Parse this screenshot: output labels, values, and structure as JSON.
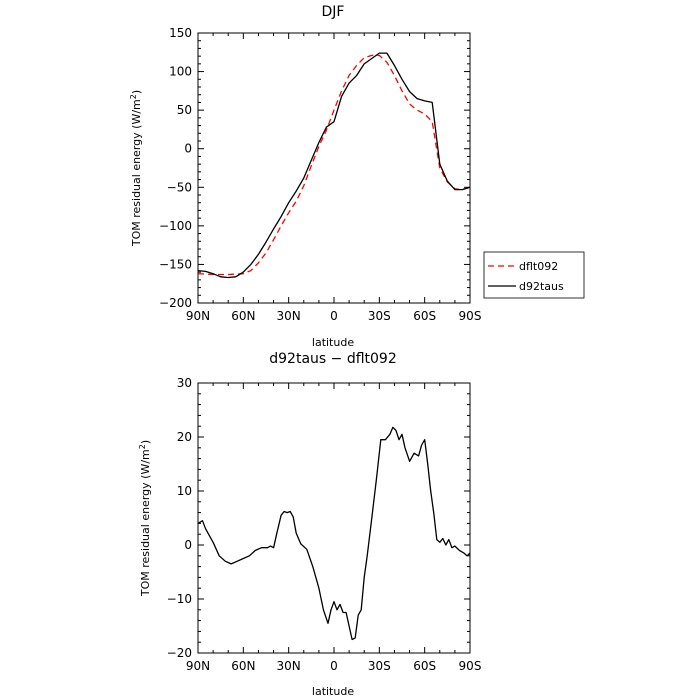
{
  "chart_data": [
    {
      "type": "line",
      "title": "DJF",
      "xlabel": "latitude",
      "ylabel_main": "TOM residual energy (W/m",
      "ylabel_sup": "2",
      "ylabel_close": ")",
      "x_reversed": true,
      "xlim": [
        -90,
        90
      ],
      "ylim": [
        -200,
        150
      ],
      "x_ticks": [
        90,
        60,
        30,
        0,
        -30,
        -60,
        -90
      ],
      "x_tick_labels": [
        "90N",
        "60N",
        "30N",
        "0",
        "30S",
        "60S",
        "90S"
      ],
      "y_ticks": [
        150,
        100,
        50,
        0,
        -50,
        -100,
        -150,
        -200
      ],
      "y_tick_labels": [
        "150",
        "100",
        "50",
        "0",
        "−50",
        "−100",
        "−150",
        "−200"
      ],
      "legend": {
        "placement": "right",
        "entries": [
          "dflt092",
          "d92taus"
        ]
      },
      "series": [
        {
          "name": "dflt092",
          "color": "#ff0000",
          "dash": "6,4",
          "x": [
            90,
            80,
            70,
            60,
            55,
            50,
            45,
            40,
            35,
            30,
            25,
            20,
            15,
            10,
            5,
            0,
            -5,
            -10,
            -15,
            -20,
            -25,
            -30,
            -35,
            -40,
            -45,
            -50,
            -55,
            -60,
            -65,
            -70,
            -75,
            -80,
            -85,
            -90
          ],
          "y": [
            -162,
            -163,
            -163,
            -162,
            -158,
            -148,
            -135,
            -118,
            -100,
            -83,
            -68,
            -48,
            -22,
            3,
            24,
            50,
            75,
            95,
            108,
            118,
            121,
            121,
            112,
            95,
            75,
            58,
            50,
            45,
            35,
            -25,
            -43,
            -52,
            -53,
            -50
          ]
        },
        {
          "name": "d92taus",
          "color": "#000000",
          "dash": "",
          "x": [
            90,
            85,
            80,
            75,
            70,
            65,
            60,
            55,
            50,
            45,
            40,
            35,
            30,
            25,
            20,
            15,
            10,
            5,
            0,
            -5,
            -10,
            -15,
            -20,
            -25,
            -30,
            -35,
            -40,
            -45,
            -50,
            -55,
            -60,
            -65,
            -70,
            -75,
            -80,
            -85,
            -90
          ],
          "y": [
            -158,
            -159,
            -162,
            -166,
            -167,
            -166,
            -160,
            -150,
            -137,
            -121,
            -104,
            -88,
            -70,
            -55,
            -38,
            -15,
            8,
            28,
            35,
            68,
            85,
            95,
            110,
            117,
            124,
            124,
            108,
            90,
            74,
            65,
            62,
            60,
            -20,
            -42,
            -53,
            -53,
            -50
          ]
        }
      ]
    },
    {
      "type": "line",
      "title": "d92taus − dflt092",
      "xlabel": "latitude",
      "ylabel_main": "TOM residual energy (W/m",
      "ylabel_sup": "2",
      "ylabel_close": ")",
      "x_reversed": true,
      "xlim": [
        -90,
        90
      ],
      "ylim": [
        -20,
        30
      ],
      "x_ticks": [
        90,
        60,
        30,
        0,
        -30,
        -60,
        -90
      ],
      "x_tick_labels": [
        "90N",
        "60N",
        "30N",
        "0",
        "30S",
        "60S",
        "90S"
      ],
      "y_ticks": [
        30,
        20,
        10,
        0,
        -10,
        -20
      ],
      "y_tick_labels": [
        "30",
        "20",
        "10",
        "0",
        "−10",
        "−20"
      ],
      "series": [
        {
          "color": "#000000",
          "dash": "",
          "x": [
            90,
            87,
            85,
            80,
            76,
            72,
            68,
            64,
            60,
            56,
            52,
            48,
            46,
            44,
            42,
            40,
            38,
            35,
            33,
            31,
            29,
            27,
            25,
            22,
            18,
            14,
            10,
            7,
            4,
            2,
            0,
            -2,
            -4,
            -6,
            -8,
            -10,
            -12,
            -14,
            -16,
            -18,
            -20,
            -22,
            -25,
            -28,
            -31,
            -34,
            -37,
            -39,
            -41,
            -43,
            -45,
            -47,
            -50,
            -53,
            -56,
            -58,
            -60,
            -62,
            -64,
            -66,
            -68,
            -70,
            -72,
            -74,
            -76,
            -78,
            -80,
            -83,
            -86,
            -88,
            -90
          ],
          "y": [
            4,
            4.5,
            3,
            0.5,
            -2,
            -3,
            -3.5,
            -3,
            -2.5,
            -2,
            -1,
            -0.5,
            -0.5,
            -0.5,
            -0.2,
            -0.5,
            2,
            5.5,
            6.2,
            6,
            6.2,
            5.2,
            2.2,
            0.2,
            -0.8,
            -4,
            -8,
            -12,
            -14.5,
            -12,
            -10.5,
            -12,
            -11,
            -12.5,
            -12.5,
            -15,
            -17.5,
            -17.2,
            -13,
            -12,
            -6,
            -2,
            5,
            12,
            19.5,
            19.5,
            20.5,
            21.8,
            21.2,
            19.5,
            20.5,
            18,
            15.5,
            17,
            16.5,
            18.5,
            19.5,
            15,
            10,
            6,
            1,
            0.5,
            1.2,
            0,
            1,
            -0.5,
            -0.2,
            -1,
            -1.5,
            -2,
            -1.5
          ]
        }
      ]
    }
  ]
}
